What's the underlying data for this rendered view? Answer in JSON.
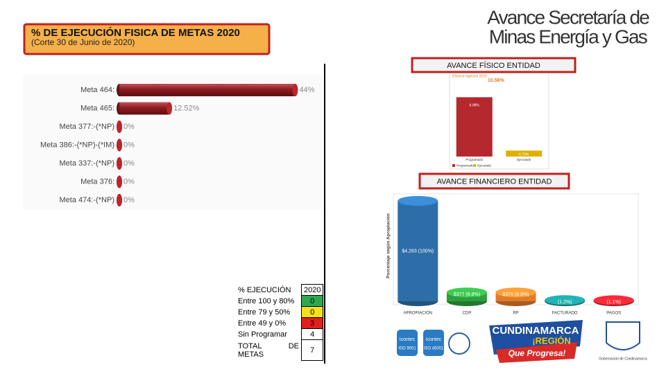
{
  "header": {
    "title": "% DE EJECUCIÓN FISICA DE METAS 2020",
    "subtitle": "(Corte 30 de Junio de 2020)"
  },
  "page_title": [
    "Avance Secretaría de",
    "Minas Energía y Gas"
  ],
  "chart_data": [
    {
      "type": "bar",
      "orientation": "horizontal",
      "categories": [
        "Meta 464:",
        "Meta 465:",
        "Meta 377:-(*NP)",
        "Meta 386:-(*NP)-(*IM)",
        "Meta 337:-(*NP)",
        "Meta 376:",
        "Meta 474:-(*NP)"
      ],
      "values": [
        44,
        12.52,
        0,
        0,
        0,
        0,
        0
      ],
      "value_labels": [
        "44%",
        "12.52%",
        "0%",
        "0%",
        "0%",
        "0%",
        "0%"
      ],
      "xlim": [
        0,
        50
      ],
      "color": "#8e1b20"
    },
    {
      "type": "bar",
      "title": "AVANCE FÍSICO ENTIDAD",
      "subtitle": "Eficacia vigencia 2020",
      "annotation": "10.56%",
      "categories": [
        "Programado",
        "Ejecutado"
      ],
      "values": [
        6.98,
        0.7
      ],
      "value_labels": [
        "6.98%",
        "0.70%"
      ],
      "colors": [
        "#b5282e",
        "#e0b000"
      ],
      "ylim": [
        0,
        7.5
      ]
    },
    {
      "type": "bar",
      "title": "AVANCE FINANCIERO ENTIDAD",
      "ylabel": "Porcentaje según Apropiación",
      "categories": [
        "APROPIACIÓN",
        "CDP",
        "RP",
        "FACTURADO",
        "PAGOS"
      ],
      "values": [
        100,
        8.8,
        8.8,
        1.2,
        1.1
      ],
      "value_labels": [
        "$4.263 (100%)",
        "$377 (8.8%)",
        "$376 (8.8%)",
        "(1.2%)",
        "(1.1%)"
      ],
      "colors": [
        "#2e6ea8",
        "#2e9e3e",
        "#e07b2a",
        "#1a8a8a",
        "#c3202a"
      ],
      "ylim": [
        0,
        100
      ]
    }
  ],
  "table": {
    "header": [
      "% EJECUCIÓN",
      "2020"
    ],
    "rows": [
      [
        "Entre 100 y 80%",
        "0"
      ],
      [
        "Entre 79 y 50%",
        "0"
      ],
      [
        "Entre 49 y 0%",
        "3"
      ],
      [
        "Sin Programar",
        "4"
      ],
      [
        "TOTAL DE METAS",
        "7"
      ]
    ]
  },
  "logos": {
    "icontec": [
      "icontec",
      "icontec"
    ],
    "iso": [
      "ISO 9001",
      "ISO 45001"
    ],
    "brand": [
      "CUNDINAMARCA",
      "¡REGIÓN",
      "Que Progresa!"
    ],
    "gov": "Gobernación de Cundinamarca"
  }
}
